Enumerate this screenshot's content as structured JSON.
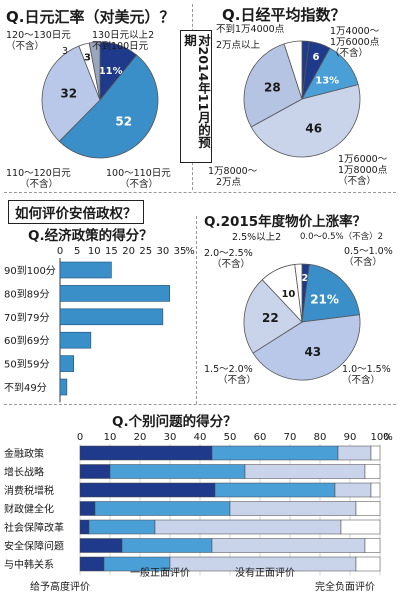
{
  "chart_data": [
    {
      "type": "pie",
      "title": "Q.日元汇率（对美元）？",
      "slices": [
        {
          "label": "130日元以上2\n不到100日元",
          "value": 11,
          "value_label": "11%",
          "color": "#1f3a8a"
        },
        {
          "label": "100～110日元\n（不含）",
          "value": 52,
          "value_label": "52",
          "color": "#3a8fc8"
        },
        {
          "label": "110～120日元\n（不含）",
          "value": 32,
          "value_label": "32",
          "color": "#b9c8e8"
        },
        {
          "label": "",
          "value": 3,
          "value_label": "3",
          "color": "#ffffff"
        },
        {
          "label": "120～130日元\n（不含）",
          "value": 3,
          "value_label": "",
          "color": "#9aa6bd"
        }
      ]
    },
    {
      "type": "pie",
      "title": "Q.日经平均指数？",
      "slices": [
        {
          "label": "不到1万4000点",
          "value": 2,
          "value_label": "",
          "color": "#1f3a8a"
        },
        {
          "label": "1万4000～\n1万6000点\n（不含）",
          "value": 6,
          "value_label": "6",
          "color": "#1f3a8a"
        },
        {
          "label": "",
          "value": 13,
          "value_label": "13%",
          "color": "#4a9fd6"
        },
        {
          "label": "1万6000～\n1万8000点\n（不含）",
          "value": 46,
          "value_label": "46",
          "color": "#c9d3e9"
        },
        {
          "label": "1万8000～\n2万点",
          "value": 28,
          "value_label": "28",
          "color": "#b6c4e4"
        },
        {
          "label": "2万点以上",
          "value": 5,
          "value_label": "",
          "color": "#ffffff"
        }
      ]
    },
    {
      "type": "bar",
      "title": "Q.经济政策的得分？",
      "orientation": "horizontal",
      "categories": [
        "90到100分",
        "80到89分",
        "70到79分",
        "60到69分",
        "50到59分",
        "不到49分"
      ],
      "values": [
        15,
        32,
        30,
        9,
        4,
        2
      ],
      "xlim": [
        0,
        35
      ],
      "ticks": [
        "0",
        "5",
        "10",
        "15",
        "20",
        "25",
        "30",
        "35",
        "%"
      ]
    },
    {
      "type": "pie",
      "title": "Q.2015年度物价上涨率？",
      "slices": [
        {
          "label": "0.0～0.5%（不含）",
          "value": 2,
          "value_label": "2",
          "color": "#1f3a8a"
        },
        {
          "label": "0.5～1.0%\n（不含）",
          "value": 21,
          "value_label": "21%",
          "color": "#3a8fc8"
        },
        {
          "label": "1.0～1.5%\n（不含）",
          "value": 43,
          "value_label": "43",
          "color": "#b9c8e8"
        },
        {
          "label": "1.5～2.0%\n（不含）",
          "value": 22,
          "value_label": "22",
          "color": "#c9d3e9"
        },
        {
          "label": "2.0～2.5%\n（不含）",
          "value": 10,
          "value_label": "10",
          "color": "#ffffff"
        },
        {
          "label": "2.5%以上2",
          "value": 2,
          "value_label": "",
          "color": "#ffffff"
        }
      ]
    },
    {
      "type": "bar",
      "title": "Q.个别问题的得分？",
      "orientation": "horizontal",
      "stacked": true,
      "categories": [
        "金融政策",
        "增长战略",
        "消费税增税",
        "财政健全化",
        "社会保障改革",
        "安全保障问题",
        "与中韩关系"
      ],
      "ticks": [
        "0",
        "10",
        "20",
        "30",
        "40",
        "50",
        "60",
        "70",
        "80",
        "90",
        "100",
        "%"
      ],
      "series": [
        {
          "name": "给予高度评价",
          "color": "#1f3a8a",
          "values": [
            44,
            10,
            45,
            5,
            3,
            14,
            8
          ]
        },
        {
          "name": "一般正面评价",
          "color": "#4a9fd6",
          "values": [
            42,
            45,
            40,
            45,
            22,
            30,
            22
          ]
        },
        {
          "name": "没有正面评价",
          "color": "#c9d3e9",
          "values": [
            11,
            40,
            12,
            42,
            62,
            51,
            62
          ]
        },
        {
          "name": "完全负面评价",
          "color": "#ffffff",
          "values": [
            3,
            5,
            3,
            8,
            13,
            5,
            8
          ]
        }
      ]
    }
  ],
  "header": {
    "pie1_title": "Q.日元汇率（对美元）？",
    "pie2_title": "Q.日经平均指数？",
    "center_note": "对2014年11月的预期"
  },
  "section": {
    "evaluate_title": "如何评价安倍政权？",
    "bar1_title": "Q.经济政策的得分？",
    "pie3_title": "Q.2015年度物价上涨率？",
    "bar2_title": "Q.个别问题的得分？"
  },
  "labels": {
    "p1_a": "120～130日元",
    "p1_a2": "（不含）",
    "p1_b": "3",
    "p1_c1": "130日元以上2",
    "p1_c2": "不到100日元",
    "p1_d1": "110～120日元",
    "p1_d2": "（不含）",
    "p1_e1": "100～110日元",
    "p1_e2": "（不含）",
    "p2_a": "不到1万4000点",
    "p2_b": "2万点以上",
    "p2_c1": "1万4000～",
    "p2_c2": "1万6000点",
    "p2_c3": "（不含）",
    "p2_d1": "1万6000～",
    "p2_d2": "1万8000点",
    "p2_d3": "（不含）",
    "p2_e1": "1万8000～",
    "p2_e2": "2万点",
    "p3_a": "2.5%以上2",
    "p3_b": "0.0～0.5%（不含）2",
    "p3_c1": "2.0～2.5%",
    "p3_c2": "（不含）",
    "p3_d1": "0.5～1.0%",
    "p3_d2": "（不含）",
    "p3_e1": "1.5～2.0%",
    "p3_e2": "（不含）",
    "p3_f1": "1.0～1.5%",
    "p3_f2": "（不含）"
  }
}
